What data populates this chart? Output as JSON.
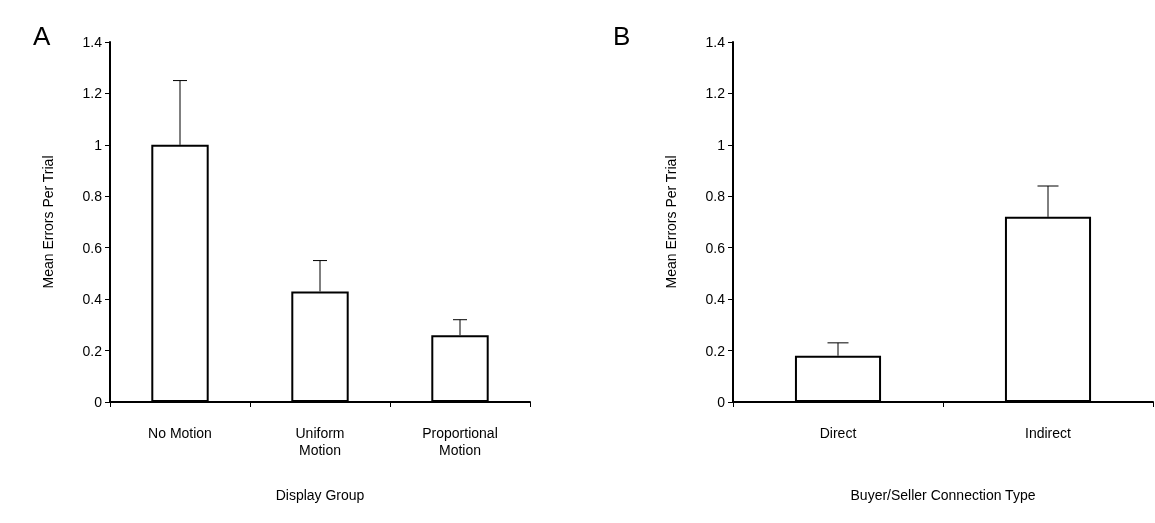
{
  "chart_data": [
    {
      "type": "bar",
      "title": "A",
      "xlabel": "Display Group",
      "ylabel": "Mean Errors Per Trial",
      "categories": [
        "No Motion",
        "Uniform\nMotion",
        "Proportional\nMotion"
      ],
      "values": [
        1.0,
        0.43,
        0.26
      ],
      "errors": [
        [
          1.0,
          1.25
        ],
        [
          0.43,
          0.55
        ],
        [
          0.26,
          0.32
        ]
      ],
      "color": "#ffffff",
      "ylim": [
        0,
        1.4
      ],
      "yticks": [
        0,
        0.2,
        0.4,
        0.6,
        0.8,
        1,
        1.2,
        1.4
      ],
      "grid": false
    },
    {
      "type": "bar",
      "title": "B",
      "xlabel": "Buyer/Seller Connection Type",
      "ylabel": "Mean Errors Per Trial",
      "categories": [
        "Direct",
        "Indirect"
      ],
      "values": [
        0.18,
        0.72
      ],
      "errors": [
        [
          0.18,
          0.23
        ],
        [
          0.72,
          0.84
        ]
      ],
      "color": "#ffffff",
      "ylim": [
        0,
        1.4
      ],
      "yticks": [
        0,
        0.2,
        0.4,
        0.6,
        0.8,
        1,
        1.2,
        1.4
      ],
      "grid": false
    }
  ]
}
